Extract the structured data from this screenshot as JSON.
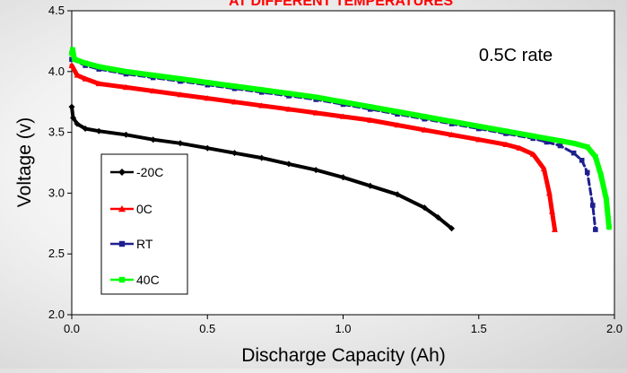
{
  "chart_data": {
    "type": "line",
    "title": "AT DIFFERENT TEMPERATURES",
    "annotation": "0.5C rate",
    "xlabel": "Discharge Capacity (Ah)",
    "ylabel": "Voltage (v)",
    "xlim": [
      0,
      2
    ],
    "ylim": [
      2,
      4.5
    ],
    "xticks": [
      "0.0",
      "0.5",
      "1.0",
      "1.5",
      "2.0"
    ],
    "yticks": [
      "2.0",
      "2.5",
      "3.0",
      "3.5",
      "4.0",
      "4.5"
    ],
    "grid": false,
    "legend_position": "lower-left",
    "series": [
      {
        "name": "-20C",
        "color": "#000000",
        "marker": "diamond",
        "x": [
          0,
          0.005,
          0.02,
          0.05,
          0.1,
          0.2,
          0.3,
          0.4,
          0.5,
          0.6,
          0.7,
          0.8,
          0.9,
          1.0,
          1.1,
          1.2,
          1.3,
          1.35,
          1.4
        ],
        "y": [
          3.71,
          3.62,
          3.57,
          3.53,
          3.51,
          3.48,
          3.44,
          3.41,
          3.37,
          3.33,
          3.29,
          3.24,
          3.19,
          3.13,
          3.06,
          2.99,
          2.88,
          2.8,
          2.71
        ]
      },
      {
        "name": "0C",
        "color": "#ff0000",
        "marker": "triangle",
        "x": [
          0,
          0.02,
          0.05,
          0.1,
          0.2,
          0.3,
          0.4,
          0.5,
          0.6,
          0.7,
          0.8,
          0.9,
          1.0,
          1.1,
          1.2,
          1.3,
          1.4,
          1.5,
          1.6,
          1.65,
          1.7,
          1.74,
          1.76,
          1.77,
          1.78
        ],
        "y": [
          4.05,
          3.97,
          3.94,
          3.9,
          3.87,
          3.84,
          3.81,
          3.78,
          3.75,
          3.72,
          3.69,
          3.66,
          3.63,
          3.6,
          3.56,
          3.52,
          3.48,
          3.44,
          3.4,
          3.37,
          3.32,
          3.2,
          3.0,
          2.85,
          2.7
        ]
      },
      {
        "name": "RT",
        "color": "#1f1f8f",
        "marker": "square",
        "x": [
          0,
          0.05,
          0.1,
          0.2,
          0.3,
          0.4,
          0.5,
          0.6,
          0.7,
          0.8,
          0.9,
          1.0,
          1.1,
          1.2,
          1.3,
          1.4,
          1.5,
          1.6,
          1.7,
          1.75,
          1.8,
          1.85,
          1.88,
          1.9,
          1.92,
          1.93
        ],
        "y": [
          4.1,
          4.05,
          4.02,
          3.98,
          3.95,
          3.92,
          3.89,
          3.86,
          3.83,
          3.8,
          3.77,
          3.73,
          3.69,
          3.65,
          3.61,
          3.57,
          3.53,
          3.49,
          3.45,
          3.42,
          3.39,
          3.33,
          3.27,
          3.17,
          2.9,
          2.7
        ]
      },
      {
        "name": "40C",
        "color": "#00ff00",
        "marker": "square",
        "x": [
          0,
          0.003,
          0.01,
          0.05,
          0.1,
          0.2,
          0.3,
          0.4,
          0.5,
          0.6,
          0.7,
          0.8,
          0.9,
          1.0,
          1.1,
          1.2,
          1.3,
          1.4,
          1.5,
          1.6,
          1.7,
          1.8,
          1.85,
          1.9,
          1.93,
          1.95,
          1.97,
          1.98
        ],
        "y": [
          4.15,
          4.18,
          4.1,
          4.07,
          4.04,
          4.0,
          3.97,
          3.94,
          3.91,
          3.88,
          3.85,
          3.82,
          3.79,
          3.75,
          3.71,
          3.67,
          3.63,
          3.59,
          3.55,
          3.51,
          3.47,
          3.43,
          3.41,
          3.38,
          3.3,
          3.15,
          2.95,
          2.72
        ]
      }
    ]
  }
}
